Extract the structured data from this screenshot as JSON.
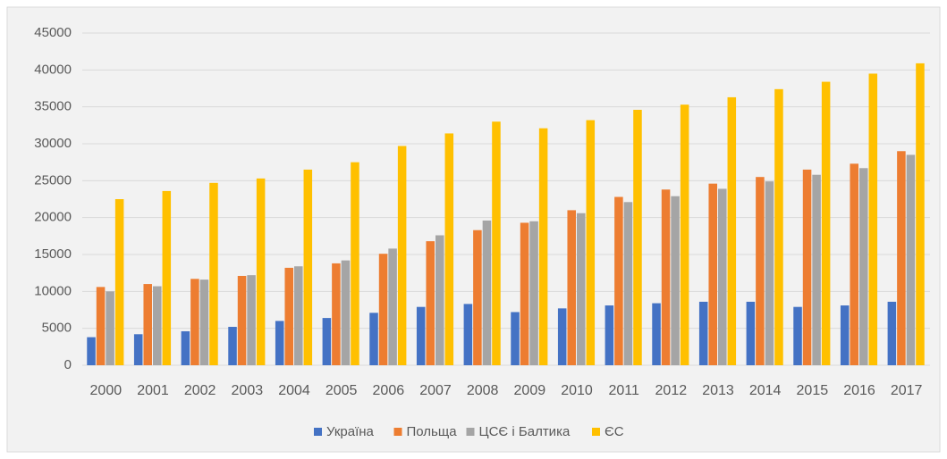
{
  "chart_data": {
    "type": "bar",
    "categories": [
      "2000",
      "2001",
      "2002",
      "2003",
      "2004",
      "2005",
      "2006",
      "2007",
      "2008",
      "2009",
      "2010",
      "2011",
      "2012",
      "2013",
      "2014",
      "2015",
      "2016",
      "2017"
    ],
    "series": [
      {
        "name": "Україна",
        "color": "#4472c4",
        "values": [
          3800,
          4200,
          4600,
          5200,
          6000,
          6400,
          7100,
          7900,
          8300,
          7200,
          7700,
          8100,
          8400,
          8600,
          8600,
          7900,
          8100,
          8600
        ]
      },
      {
        "name": "Польща",
        "color": "#ed7d31",
        "values": [
          10600,
          11000,
          11700,
          12100,
          13200,
          13800,
          15100,
          16800,
          18300,
          19300,
          21000,
          22800,
          23800,
          24600,
          25500,
          26500,
          27300,
          29000
        ]
      },
      {
        "name": "ЦСЄ і Балтика",
        "color": "#a5a5a5",
        "values": [
          10000,
          10700,
          11600,
          12200,
          13400,
          14200,
          15800,
          17600,
          19600,
          19500,
          20600,
          22100,
          22900,
          23900,
          24900,
          25800,
          26700,
          28500
        ]
      },
      {
        "name": "ЄС",
        "color": "#ffc000",
        "values": [
          22500,
          23600,
          24700,
          25300,
          26500,
          27500,
          29700,
          31400,
          33000,
          32100,
          33200,
          34600,
          35300,
          36300,
          37400,
          38400,
          39500,
          40900
        ]
      }
    ],
    "ylim": [
      0,
      45000
    ],
    "yticks": [
      0,
      5000,
      10000,
      15000,
      20000,
      25000,
      30000,
      35000,
      40000,
      45000
    ],
    "grid": true,
    "legend": "bottom"
  }
}
